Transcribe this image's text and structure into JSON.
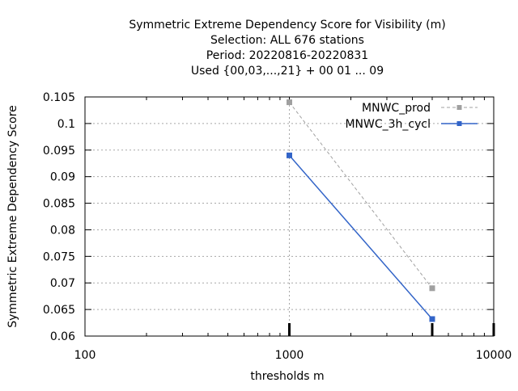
{
  "chart_data": {
    "type": "line",
    "title_lines": [
      "Symmetric Extreme Dependency Score  for Visibility (m)",
      "Selection: ALL    676 stations",
      "Period: 20220816-20220831",
      "Used {00,03,...,21} + 00 01 ... 09"
    ],
    "xlabel": "thresholds m",
    "ylabel": "Symmetric Extreme Dependency Score",
    "x_scale": "log",
    "xlim": [
      100,
      10000
    ],
    "ylim": [
      0.06,
      0.105
    ],
    "x_ticks": [
      100,
      1000,
      10000
    ],
    "x_tick_labels": [
      "100",
      "1000",
      "10000"
    ],
    "y_ticks": [
      0.06,
      0.065,
      0.07,
      0.075,
      0.08,
      0.085,
      0.09,
      0.095,
      0.1,
      0.105
    ],
    "y_tick_labels": [
      "0.06",
      "0.065",
      "0.07",
      "0.075",
      "0.08",
      "0.085",
      "0.09",
      "0.095",
      "0.1",
      "0.105"
    ],
    "grid": true,
    "legend_position": "top-right",
    "series": [
      {
        "name": "MNWC_prod",
        "x": [
          1000,
          5000
        ],
        "y": [
          0.104,
          0.069
        ],
        "color": "#a0a0a0",
        "dash": true
      },
      {
        "name": "MNWC_3h_cycl",
        "x": [
          1000,
          5000
        ],
        "y": [
          0.094,
          0.0632
        ],
        "color": "#3264c8",
        "dash": false
      }
    ]
  }
}
